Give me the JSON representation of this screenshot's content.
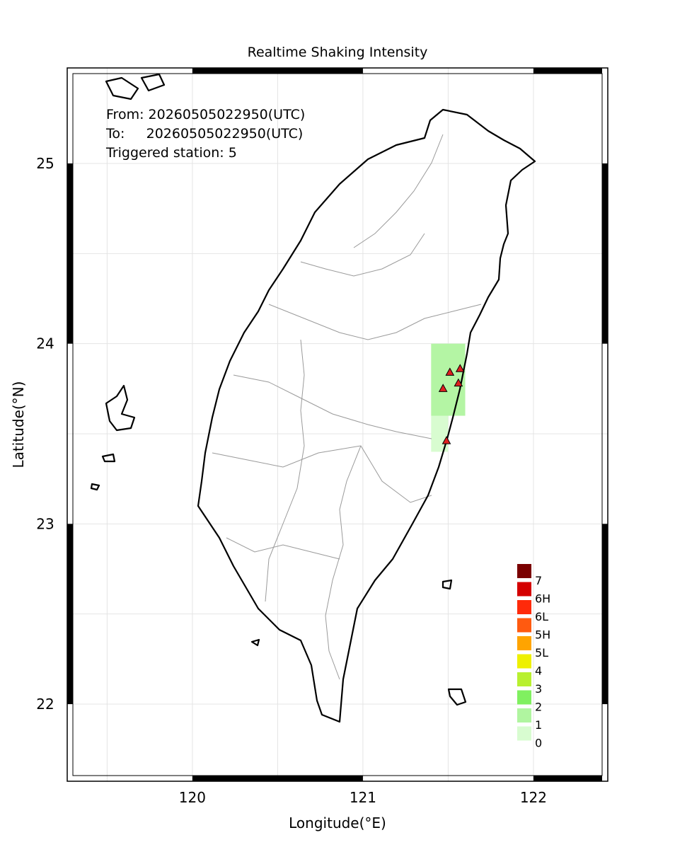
{
  "chart_data": {
    "type": "map",
    "title": "Realtime Shaking Intensity",
    "x_label": "Longitude(°E)",
    "y_label": "Latitude(°N)",
    "xlim": [
      119.266,
      122.436
    ],
    "ylim": [
      21.572,
      25.53
    ],
    "xticks": [
      120,
      121,
      122
    ],
    "yticks": [
      22,
      23,
      24,
      25
    ],
    "xgrid": [
      119.5,
      120,
      120.5,
      121,
      121.5,
      122
    ],
    "ygrid": [
      22,
      22.5,
      23,
      23.5,
      24,
      24.5,
      25
    ],
    "info": [
      "From: 20260505022950(UTC)",
      "To:     20260505022950(UTC)",
      "Triggered station: 5"
    ],
    "cells": [
      {
        "lon": [
          121.4,
          121.6
        ],
        "lat": [
          23.6,
          24.0
        ],
        "color": "#b4f5a4"
      },
      {
        "lon": [
          121.4,
          121.5
        ],
        "lat": [
          23.4,
          23.6
        ],
        "color": "#d8fcd0"
      }
    ],
    "stations": {
      "color": "#e02020",
      "lon": [
        121.51,
        121.57,
        121.47,
        121.56,
        121.49
      ],
      "lat": [
        23.84,
        23.86,
        23.75,
        23.78,
        23.46
      ]
    },
    "legend": [
      {
        "label": "7",
        "color": "#7a0000"
      },
      {
        "label": "6H",
        "color": "#d40000"
      },
      {
        "label": "6L",
        "color": "#ff2a0a"
      },
      {
        "label": "5H",
        "color": "#ff5a10"
      },
      {
        "label": "5L",
        "color": "#ffa400"
      },
      {
        "label": "4",
        "color": "#eef000"
      },
      {
        "label": "3",
        "color": "#b8f030"
      },
      {
        "label": "2",
        "color": "#80f060"
      },
      {
        "label": "1",
        "color": "#b0f5a0"
      },
      {
        "label": "0",
        "color": "#d8fcd0"
      }
    ]
  }
}
